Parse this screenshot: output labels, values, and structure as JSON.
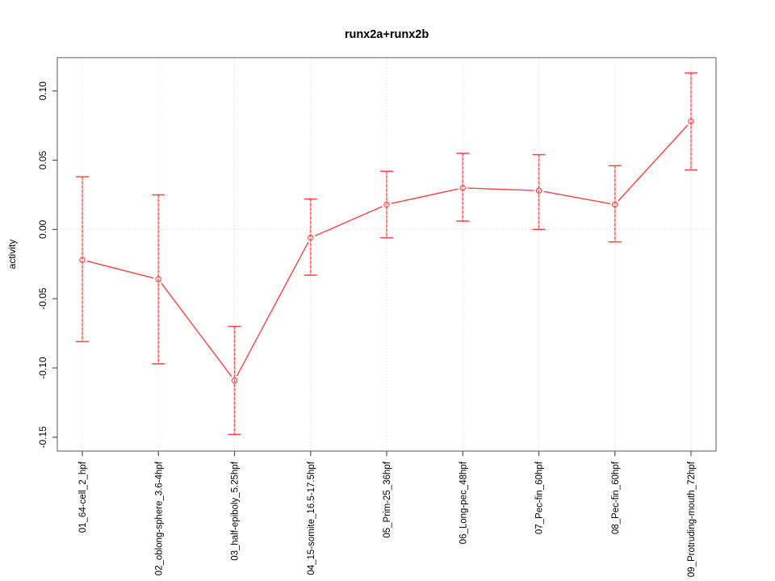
{
  "title": "runx2a+runx2b",
  "chart_data": {
    "type": "line",
    "title": "runx2a+runx2b",
    "xlabel": "",
    "ylabel": "activity",
    "legend": "none",
    "grid": {
      "vertical_dotted_at_each_category": true,
      "horizontal_dotted_at_zero": true
    },
    "ylim": [
      -0.16,
      0.124
    ],
    "y_ticks": [
      0.1,
      0.05,
      0.0,
      -0.05,
      -0.1,
      -0.15
    ],
    "y_tick_labels": [
      "0.10",
      "0.05",
      "0.00",
      "-0.05",
      "-0.10",
      "-0.15"
    ],
    "categories": [
      "01_64-cell_2_hpf",
      "02_oblong-sphere_3.6-4hpf",
      "03_half-epiboly_5.25hpf",
      "04_15-somite_16.5-17.5hpf",
      "05_Prim-25_36hpf",
      "06_Long-pec_48hpf",
      "07_Pec-fin_60hpf",
      "08_Pec-fin_60hpf",
      "09_Protruding-mouth_72hpf"
    ],
    "series": [
      {
        "name": "runx2a+runx2b",
        "values": [
          -0.022,
          -0.036,
          -0.109,
          -0.006,
          0.018,
          0.03,
          0.028,
          0.018,
          0.078
        ],
        "error_upper": [
          0.038,
          0.025,
          -0.07,
          0.022,
          0.042,
          0.055,
          0.054,
          0.046,
          0.113
        ],
        "error_lower": [
          -0.081,
          -0.097,
          -0.148,
          -0.033,
          -0.006,
          0.006,
          0.0,
          -0.009,
          0.043
        ],
        "marker": "open-circle",
        "error_bar_style": "dashed stem with solid caps"
      }
    ],
    "colors": {
      "series": "#ff4343",
      "error_bar": "#ff4343",
      "error_stem_pale": "rgba(255,110,110,0.45)",
      "grid": "#cfcfcf",
      "axis_box": "#888888",
      "tick": "#555555",
      "text": "#000000",
      "background": "#ffffff"
    }
  }
}
